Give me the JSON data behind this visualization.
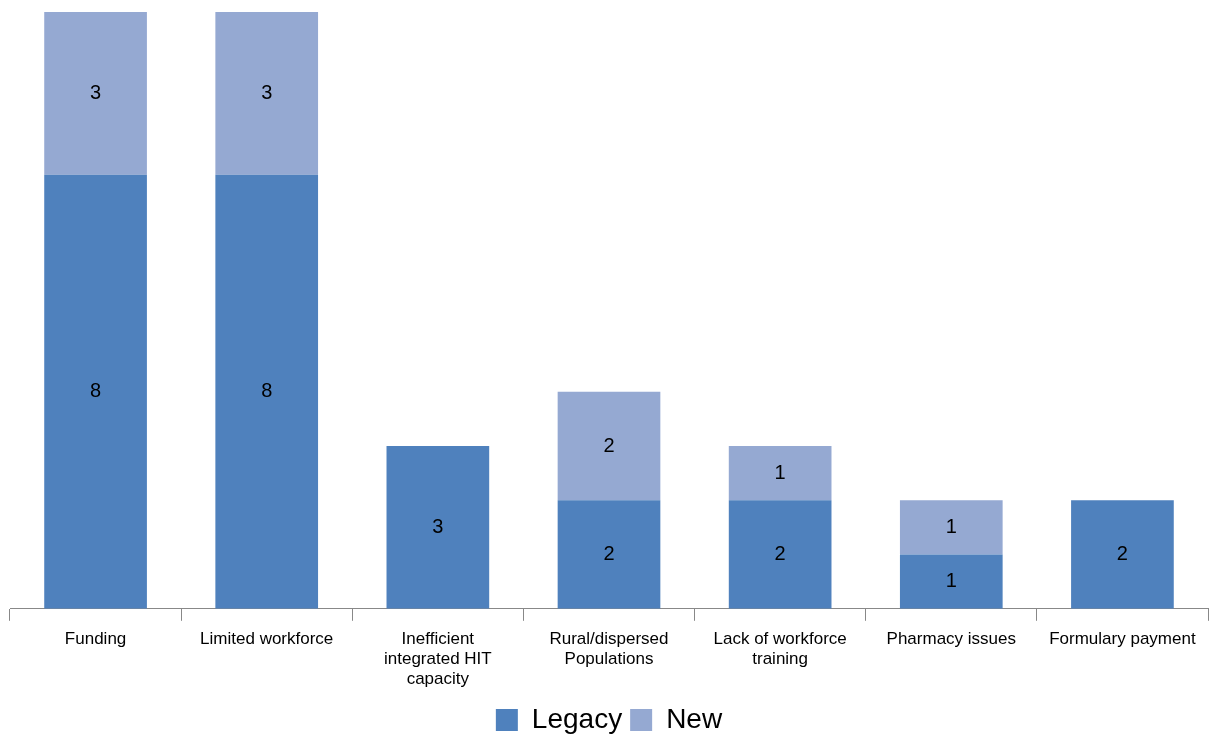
{
  "chart_data": {
    "type": "bar",
    "stacked": true,
    "data_labels": true,
    "legend": "bottom",
    "categories": [
      "Funding",
      "Limited workforce",
      "Inefficient integrated HIT capacity",
      "Rural/dispersed Populations",
      "Lack of workforce training",
      "Pharmacy issues",
      "Formulary payment"
    ],
    "series": [
      {
        "name": "Legacy",
        "color": "#4f81bd",
        "values": [
          8,
          8,
          3,
          2,
          2,
          1,
          2
        ]
      },
      {
        "name": "New",
        "color": "#95a9d2",
        "values": [
          3,
          3,
          null,
          2,
          1,
          1,
          null
        ]
      }
    ]
  }
}
